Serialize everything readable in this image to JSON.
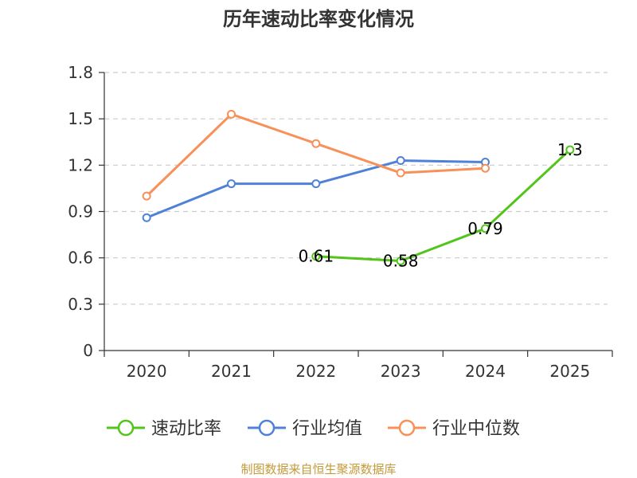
{
  "colors": {
    "velocity": "#52c41a",
    "industry_avg": "#4f81d9",
    "industry_median": "#f8905a",
    "source": "#c49a3a",
    "axis": "#333333",
    "grid": "#cccccc"
  },
  "chart_data": {
    "type": "line",
    "title": "历年速动比率变化情况",
    "categories": [
      "2020",
      "2021",
      "2022",
      "2023",
      "2024",
      "2025"
    ],
    "y_ticks": [
      "0",
      "0.3",
      "0.6",
      "0.9",
      "1.2",
      "1.5",
      "1.8"
    ],
    "ylim": [
      0,
      1.8
    ],
    "grid": true,
    "legend_position": "bottom",
    "series": [
      {
        "name": "速动比率",
        "color_key": "velocity",
        "values": [
          null,
          null,
          0.61,
          0.58,
          0.79,
          1.3
        ],
        "labels": [
          null,
          null,
          "0.61",
          "0.58",
          "0.79",
          "1.3"
        ]
      },
      {
        "name": "行业均值",
        "color_key": "industry_avg",
        "values": [
          0.86,
          1.08,
          1.08,
          1.23,
          1.22,
          null
        ],
        "labels": [
          null,
          null,
          null,
          null,
          null,
          null
        ]
      },
      {
        "name": "行业中位数",
        "color_key": "industry_median",
        "values": [
          1.0,
          1.53,
          1.34,
          1.15,
          1.18,
          null
        ],
        "labels": [
          null,
          null,
          null,
          null,
          null,
          null
        ]
      }
    ]
  },
  "source_text": "制图数据来自恒生聚源数据库"
}
